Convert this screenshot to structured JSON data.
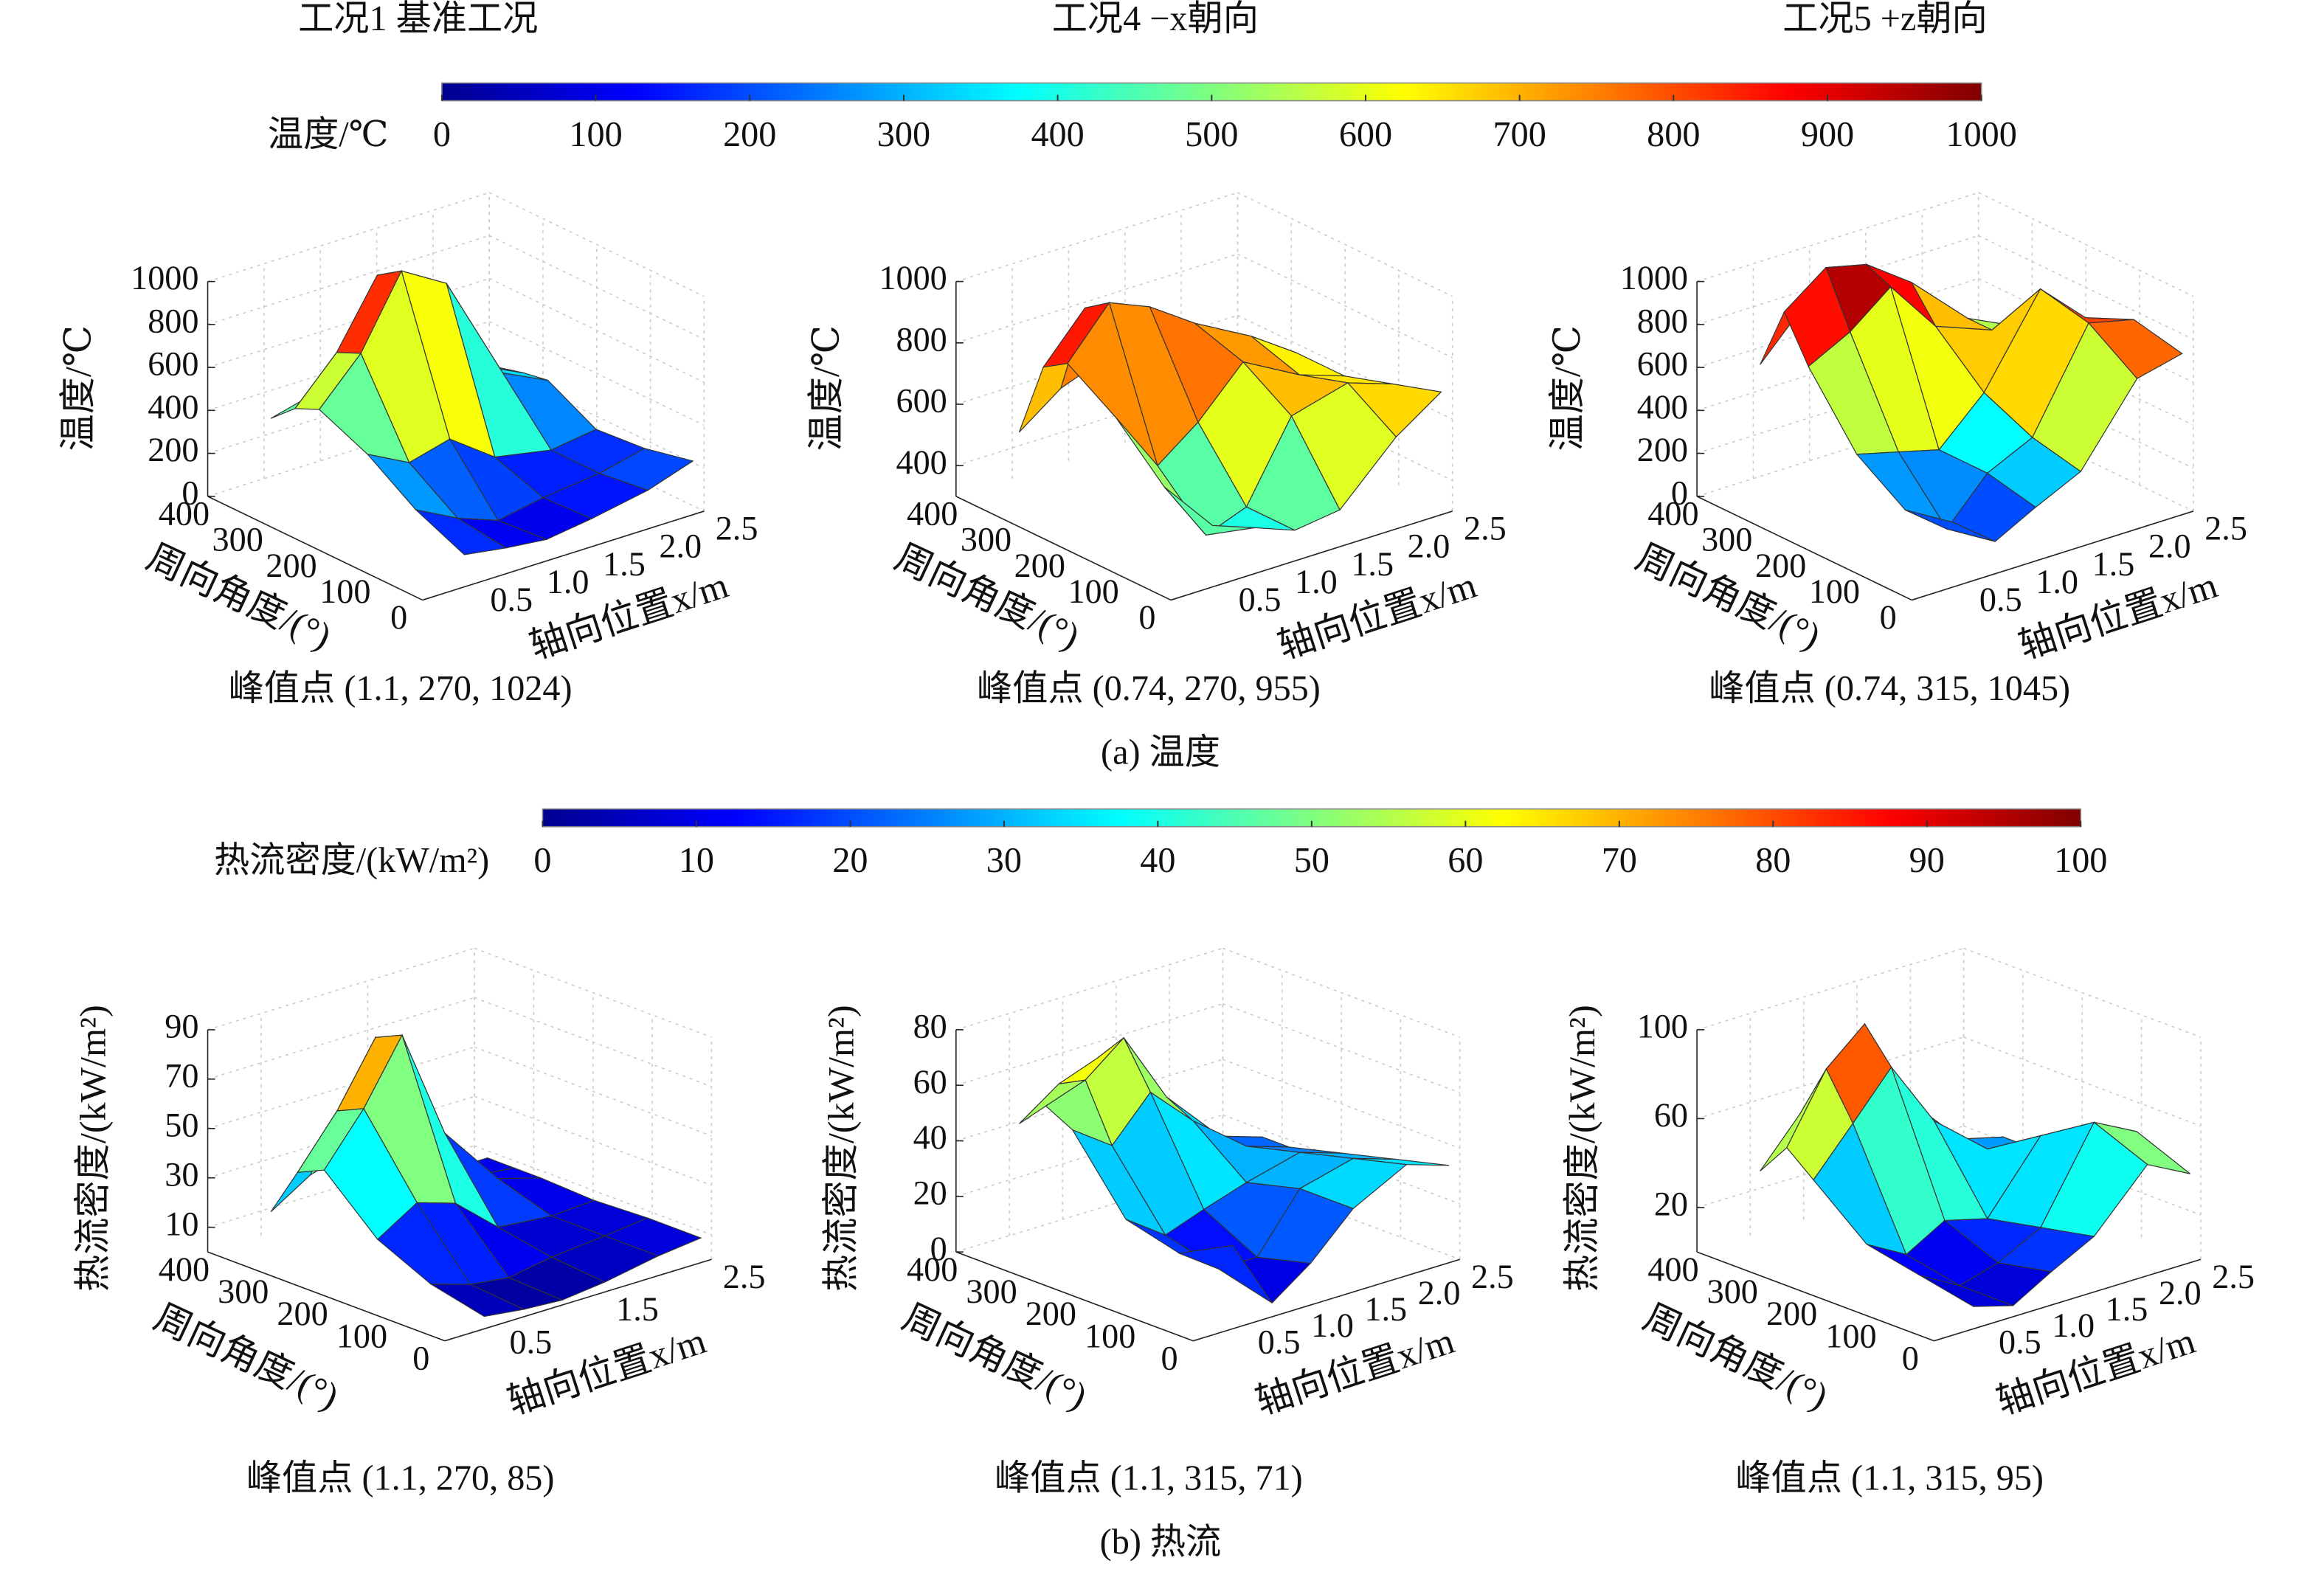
{
  "captions": [
    "(a) 温度",
    "(b) 热流"
  ],
  "chart_data": [
    {
      "type": "colorbar",
      "label": "温度/℃",
      "lim": [
        0,
        1000
      ],
      "ticks": [
        0,
        100,
        200,
        300,
        400,
        500,
        600,
        700,
        800,
        900,
        1000
      ],
      "colormap": "jet"
    },
    {
      "type": "surface3d",
      "title": "工况1 基准工况",
      "zlabel": "温度/℃",
      "ylabel": "周向角度/(°)",
      "xlabel": "轴向位置x/m",
      "annotation": "峰值点 (1.1, 270, 1024)",
      "x": [
        0.37,
        0.74,
        1.1,
        1.5,
        2.0,
        2.4
      ],
      "y": [
        0,
        90,
        180,
        270,
        315,
        360
      ],
      "z": [
        [
          150,
          120,
          100,
          130,
          180,
          250
        ],
        [
          250,
          150,
          80,
          120,
          150,
          200
        ],
        [
          400,
          300,
          350,
          200,
          150,
          180
        ],
        [
          500,
          700,
          1024,
          900,
          400,
          300
        ],
        [
          450,
          650,
          950,
          850,
          380,
          280
        ],
        [
          350,
          400,
          500,
          400,
          250,
          250
        ]
      ],
      "xlim": [
        0,
        2.5
      ],
      "ylim": [
        0,
        400
      ],
      "zlim": [
        0,
        1000
      ],
      "xticks": [
        0.5,
        {
          "value": 1,
          "label": "1.0"
        },
        1.5,
        {
          "value": 2,
          "label": "2.0"
        },
        2.5
      ],
      "yticks": [
        0,
        100,
        200,
        300,
        400
      ],
      "zticks": [
        0,
        200,
        400,
        600,
        800,
        1000
      ]
    },
    {
      "type": "surface3d",
      "title": "工况4 −x朝向",
      "zlabel": "温度/℃",
      "ylabel": "周向角度/(°)",
      "xlabel": "轴向位置x/m",
      "annotation": "峰值点 (0.74, 270, 955)",
      "x": [
        0.37,
        0.74,
        1.1,
        1.5,
        2.0,
        2.4
      ],
      "y": [
        0,
        90,
        180,
        270,
        315,
        360
      ],
      "z": [
        [
          500,
          450,
          400,
          420,
          600,
          700
        ],
        [
          550,
          350,
          400,
          650,
          700,
          650
        ],
        [
          700,
          500,
          600,
          750,
          650,
          600
        ],
        [
          800,
          955,
          900,
          800,
          700,
          600
        ],
        [
          750,
          900,
          850,
          750,
          650,
          550
        ],
        [
          500,
          600,
          650,
          600,
          550,
          500
        ]
      ],
      "xlim": [
        0,
        2.5
      ],
      "ylim": [
        0,
        400
      ],
      "zlim": [
        300,
        1000
      ],
      "xticks": [
        0.5,
        {
          "value": 1,
          "label": "1.0"
        },
        1.5,
        {
          "value": 2,
          "label": "2.0"
        },
        2.5
      ],
      "yticks": [
        0,
        100,
        200,
        300,
        400
      ],
      "zticks": [
        400,
        600,
        800,
        1000
      ]
    },
    {
      "type": "surface3d",
      "title": "工况5 +z朝向",
      "zlabel": "温度/℃",
      "ylabel": "周向角度/(°)",
      "xlabel": "轴向位置x/m",
      "annotation": "峰值点 (0.74, 315, 1045)",
      "x": [
        0.37,
        0.74,
        1.1,
        1.5,
        2.0,
        2.4
      ],
      "y": [
        0,
        90,
        180,
        270,
        315,
        360
      ],
      "z": [
        [
          300,
          150,
          250,
          350,
          700,
          750
        ],
        [
          250,
          100,
          300,
          400,
          850,
          800
        ],
        [
          400,
          350,
          300,
          500,
          900,
          700
        ],
        [
          700,
          800,
          950,
          700,
          600,
          500
        ],
        [
          900,
          1045,
          1000,
          850,
          600,
          500
        ],
        [
          600,
          800,
          700,
          500,
          400,
          350
        ]
      ],
      "xlim": [
        0,
        2.5
      ],
      "ylim": [
        0,
        400
      ],
      "zlim": [
        0,
        1000
      ],
      "xticks": [
        0.5,
        {
          "value": 1,
          "label": "1.0"
        },
        1.5,
        {
          "value": 2,
          "label": "2.0"
        },
        2.5
      ],
      "yticks": [
        0,
        100,
        200,
        300,
        400
      ],
      "zticks": [
        0,
        200,
        400,
        600,
        800,
        1000
      ]
    },
    {
      "type": "colorbar",
      "label": "热流密度/(kW/m²)",
      "lim": [
        0,
        100
      ],
      "ticks": [
        0,
        10,
        20,
        30,
        40,
        50,
        60,
        70,
        80,
        90,
        100
      ],
      "colormap": "jet"
    },
    {
      "type": "surface3d",
      "zlabel": "热流密度/(kW/m²)",
      "ylabel": "周向角度/(°)",
      "xlabel": "轴向位置x/m",
      "annotation": "峰值点 (1.1, 270, 85)",
      "x": [
        0.37,
        0.74,
        1.1,
        1.5,
        2.0,
        2.4
      ],
      "y": [
        0,
        90,
        180,
        270,
        315,
        360
      ],
      "z": [
        [
          5,
          3,
          2,
          4,
          8,
          10
        ],
        [
          10,
          5,
          3,
          6,
          8,
          10
        ],
        [
          20,
          30,
          25,
          10,
          8,
          9
        ],
        [
          40,
          60,
          85,
          40,
          15,
          10
        ],
        [
          35,
          55,
          80,
          35,
          12,
          10
        ],
        [
          15,
          25,
          30,
          20,
          10,
          10
        ]
      ],
      "xlim": [
        0,
        2.5
      ],
      "ylim": [
        0,
        400
      ],
      "zlim": [
        0,
        90
      ],
      "xticks": [
        0.5,
        1.5,
        2.5
      ],
      "yticks": [
        0,
        100,
        200,
        300,
        400
      ],
      "zticks": [
        10,
        30,
        50,
        70,
        90
      ]
    },
    {
      "type": "surface3d",
      "zlabel": "热流密度/(kW/m²)",
      "ylabel": "周向角度/(°)",
      "xlabel": "轴向位置x/m",
      "annotation": "峰值点 (1.1, 315, 71)",
      "x": [
        0.37,
        0.74,
        1.1,
        1.5,
        2.0,
        2.4
      ],
      "y": [
        0,
        90,
        180,
        270,
        315,
        360
      ],
      "z": [
        [
          30,
          5,
          15,
          30,
          40,
          35
        ],
        [
          20,
          10,
          10,
          30,
          35,
          30
        ],
        [
          25,
          15,
          20,
          25,
          30,
          25
        ],
        [
          50,
          40,
          55,
          40,
          25,
          20
        ],
        [
          55,
          60,
          71,
          45,
          25,
          20
        ],
        [
          45,
          55,
          60,
          40,
          20,
          15
        ]
      ],
      "xlim": [
        0,
        2.5
      ],
      "ylim": [
        0,
        400
      ],
      "zlim": [
        0,
        80
      ],
      "xticks": [
        0.5,
        {
          "value": 1,
          "label": "1.0"
        },
        1.5,
        {
          "value": 2,
          "label": "2.0"
        },
        2.5
      ],
      "yticks": [
        0,
        100,
        200,
        300,
        400
      ],
      "zticks": [
        0,
        20,
        40,
        60,
        80
      ]
    },
    {
      "type": "surface3d",
      "zlabel": "热流密度/(kW/m²)",
      "ylabel": "周向角度/(°)",
      "xlabel": "轴向位置x/m",
      "annotation": "峰值点 (1.1, 315, 95)",
      "x": [
        0.37,
        0.74,
        1.1,
        1.5,
        2.0,
        2.4
      ],
      "y": [
        0,
        90,
        180,
        270,
        315,
        360
      ],
      "z": [
        [
          10,
          5,
          15,
          25,
          50,
          40
        ],
        [
          15,
          5,
          10,
          20,
          60,
          50
        ],
        [
          20,
          10,
          20,
          15,
          45,
          40
        ],
        [
          40,
          60,
          80,
          50,
          30,
          25
        ],
        [
          50,
          80,
          95,
          55,
          30,
          25
        ],
        [
          35,
          55,
          60,
          40,
          20,
          20
        ]
      ],
      "xlim": [
        0,
        2.5
      ],
      "ylim": [
        0,
        400
      ],
      "zlim": [
        0,
        100
      ],
      "xticks": [
        0.5,
        {
          "value": 1,
          "label": "1.0"
        },
        1.5,
        {
          "value": 2,
          "label": "2.0"
        },
        2.5
      ],
      "yticks": [
        0,
        100,
        200,
        300,
        400
      ],
      "zticks": [
        20,
        60,
        100
      ]
    }
  ]
}
